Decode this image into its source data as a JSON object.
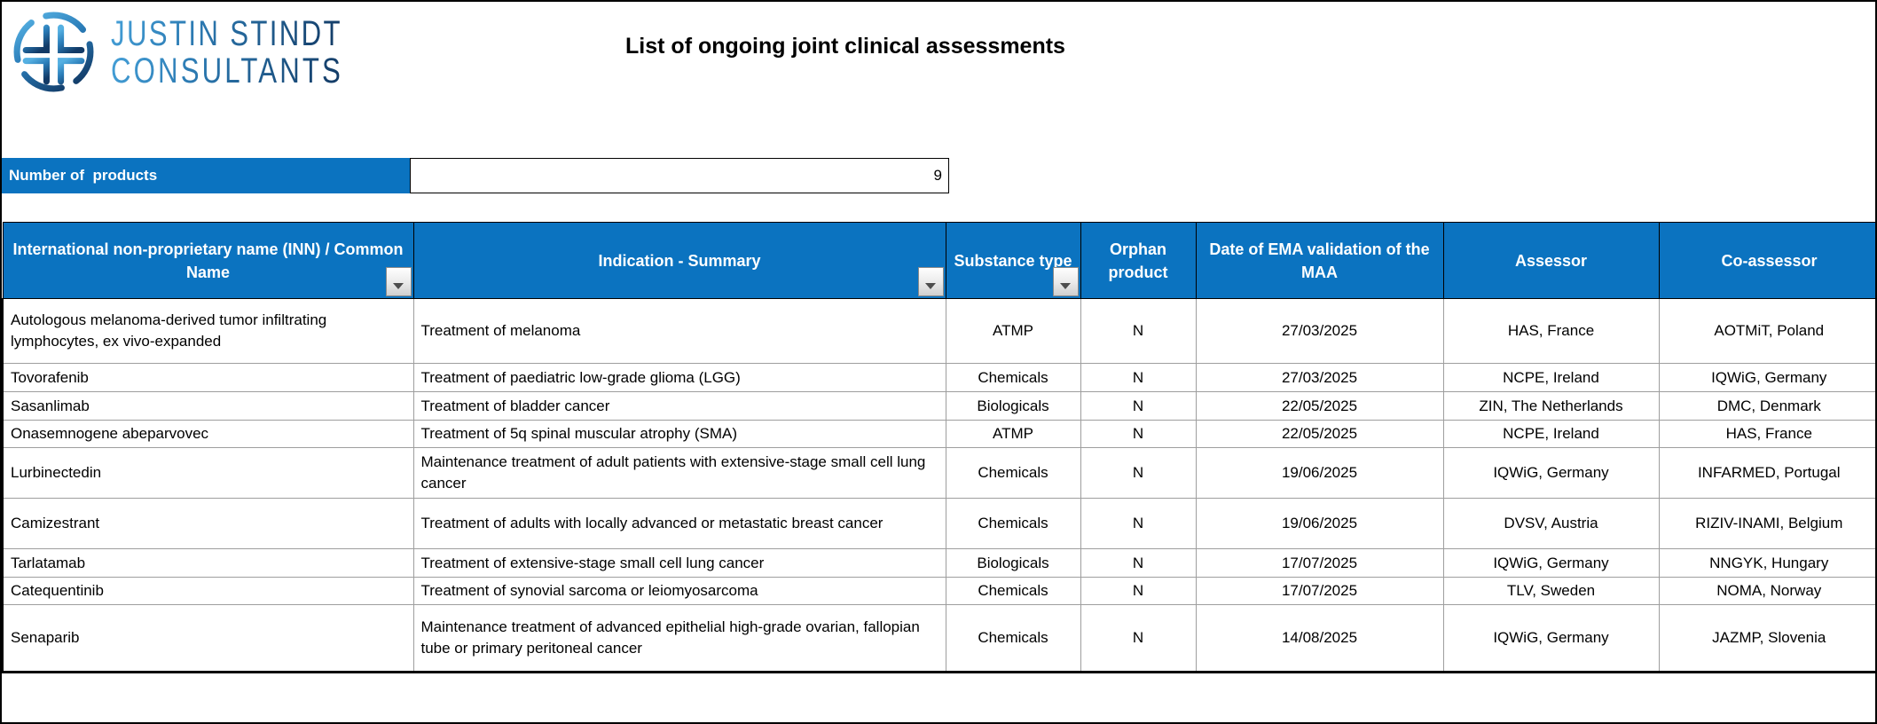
{
  "logo": {
    "line1": "JUSTIN STINDT",
    "line2": "CONSULTANTS",
    "icon": "cross-in-circle"
  },
  "title": "List of ongoing joint clinical assessments",
  "summary": {
    "label": "Number of  products",
    "value": "9"
  },
  "table": {
    "columns": [
      {
        "label": "International non-proprietary name (INN) / Common Name",
        "filter": true
      },
      {
        "label": "Indication - Summary",
        "filter": true
      },
      {
        "label": "Substance type",
        "filter": true
      },
      {
        "label": "Orphan product",
        "filter": false
      },
      {
        "label": "Date of EMA validation of the MAA",
        "filter": false
      },
      {
        "label": "Assessor",
        "filter": false
      },
      {
        "label": "Co-assessor",
        "filter": false
      }
    ],
    "rows": [
      [
        "Autologous melanoma-derived tumor infiltrating lymphocytes, ex vivo-expanded",
        "Treatment of melanoma",
        "ATMP",
        "N",
        "27/03/2025",
        "HAS, France",
        "AOTMiT, Poland"
      ],
      [
        "Tovorafenib",
        "Treatment of paediatric low-grade glioma (LGG)",
        "Chemicals",
        "N",
        "27/03/2025",
        "NCPE, Ireland",
        "IQWiG, Germany"
      ],
      [
        "Sasanlimab",
        "Treatment of bladder cancer",
        "Biologicals",
        "N",
        "22/05/2025",
        "ZIN, The Netherlands",
        "DMC, Denmark"
      ],
      [
        "Onasemnogene abeparvovec",
        "Treatment of 5q spinal muscular atrophy (SMA)",
        "ATMP",
        "N",
        "22/05/2025",
        "NCPE, Ireland",
        "HAS, France"
      ],
      [
        "Lurbinectedin",
        "Maintenance treatment of adult patients with extensive-stage small cell lung cancer",
        "Chemicals",
        "N",
        "19/06/2025",
        "IQWiG, Germany",
        "INFARMED, Portugal"
      ],
      [
        "Camizestrant",
        "Treatment of adults with locally advanced or metastatic breast cancer",
        "Chemicals",
        "N",
        "19/06/2025",
        "DVSV, Austria",
        "RIZIV-INAMI, Belgium"
      ],
      [
        "Tarlatamab",
        "Treatment of extensive-stage small cell lung cancer",
        "Biologicals",
        "N",
        "17/07/2025",
        "IQWiG, Germany",
        "NNGYK, Hungary"
      ],
      [
        "Catequentinib",
        "Treatment of synovial sarcoma or leiomyosarcoma",
        "Chemicals",
        "N",
        "17/07/2025",
        "TLV, Sweden",
        "NOMA, Norway"
      ],
      [
        "Senaparib",
        "Maintenance treatment of advanced epithelial high-grade ovarian, fallopian tube or primary peritoneal cancer",
        "Chemicals",
        "N",
        "14/08/2025",
        "IQWiG, Germany",
        "JAZMP, Slovenia"
      ]
    ]
  },
  "colors": {
    "header_blue": "#0b73c0",
    "grid_gray": "#9e9e9e",
    "logo_light_blue": "#45a0d8",
    "logo_dark_blue": "#143d68",
    "frame_black": "#000000"
  }
}
